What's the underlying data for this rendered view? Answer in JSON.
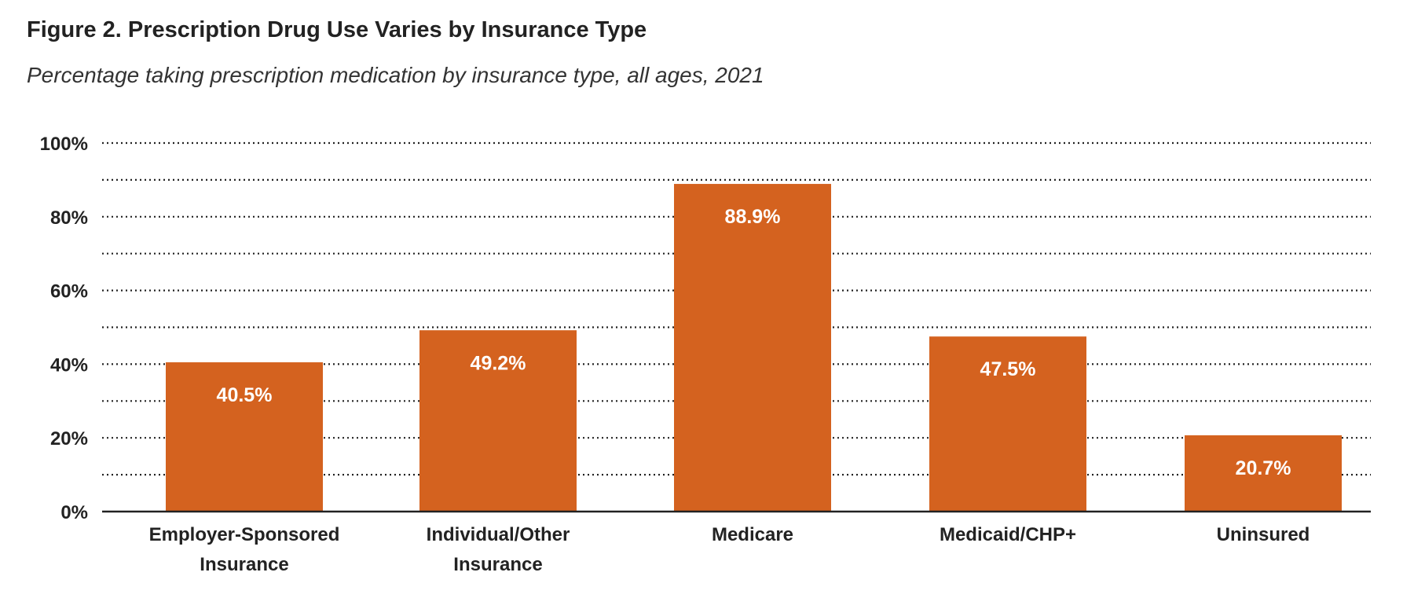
{
  "title": "Figure 2. Prescription Drug Use Varies by Insurance Type",
  "subtitle": "Percentage taking prescription medication by insurance type, all ages, 2021",
  "colors": {
    "bar": "#D4621F",
    "grid": "#222222",
    "axis": "#222222"
  },
  "chart_data": {
    "type": "bar",
    "title": "Figure 2. Prescription Drug Use Varies by Insurance Type",
    "subtitle": "Percentage taking prescription medication by insurance type, all ages, 2021",
    "categories": [
      [
        "Employer-Sponsored",
        "Insurance"
      ],
      [
        "Individual/Other",
        "Insurance"
      ],
      [
        "Medicare"
      ],
      [
        "Medicaid/CHP+"
      ],
      [
        "Uninsured"
      ]
    ],
    "values": [
      40.5,
      49.2,
      88.9,
      47.5,
      20.7
    ],
    "value_labels": [
      "40.5%",
      "49.2%",
      "88.9%",
      "47.5%",
      "20.7%"
    ],
    "ylim": [
      0,
      100
    ],
    "yticks": [
      0,
      20,
      40,
      60,
      80,
      100
    ],
    "ytick_labels": [
      "0%",
      "20%",
      "40%",
      "60%",
      "80%",
      "100%"
    ],
    "minor_grid_step": 10,
    "grid": "dotted",
    "xlabel": "",
    "ylabel": "",
    "legend": "none"
  }
}
